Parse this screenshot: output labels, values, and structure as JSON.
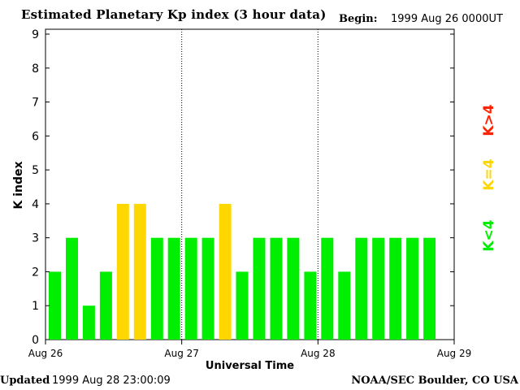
{
  "header": {
    "title": "Estimated Planetary Kp index (3 hour data)",
    "begin_label": "Begin:",
    "begin_value": "1999 Aug 26 0000UT"
  },
  "footer": {
    "updated_label": "Updated",
    "updated_value": "1999 Aug 28 23:00:09",
    "org": "NOAA/SEC Boulder, CO USA"
  },
  "legend": [
    {
      "label": "K<4",
      "color": "#00ee00"
    },
    {
      "label": "K=4",
      "color": "#ffd700"
    },
    {
      "label": "K>4",
      "color": "#ff2200"
    }
  ],
  "colors": {
    "low": "#00ee00",
    "equal4": "#ffd700",
    "high": "#ff2200"
  },
  "chart_data": {
    "type": "bar",
    "title": "Estimated Planetary Kp index (3 hour data)",
    "xlabel": "Universal Time",
    "ylabel": "K index",
    "ylim": [
      0,
      9
    ],
    "yticks": [
      0,
      1,
      2,
      3,
      4,
      5,
      6,
      7,
      8,
      9
    ],
    "xticks": [
      "Aug 26",
      "Aug 27",
      "Aug 28",
      "Aug 29"
    ],
    "day_separators": [
      "Aug 27",
      "Aug 28"
    ],
    "bars_per_day": 8,
    "values": [
      2,
      3,
      1,
      2,
      4,
      4,
      3,
      3,
      3,
      3,
      4,
      2,
      3,
      3,
      3,
      2,
      3,
      2,
      3,
      3,
      3,
      3,
      3
    ]
  }
}
